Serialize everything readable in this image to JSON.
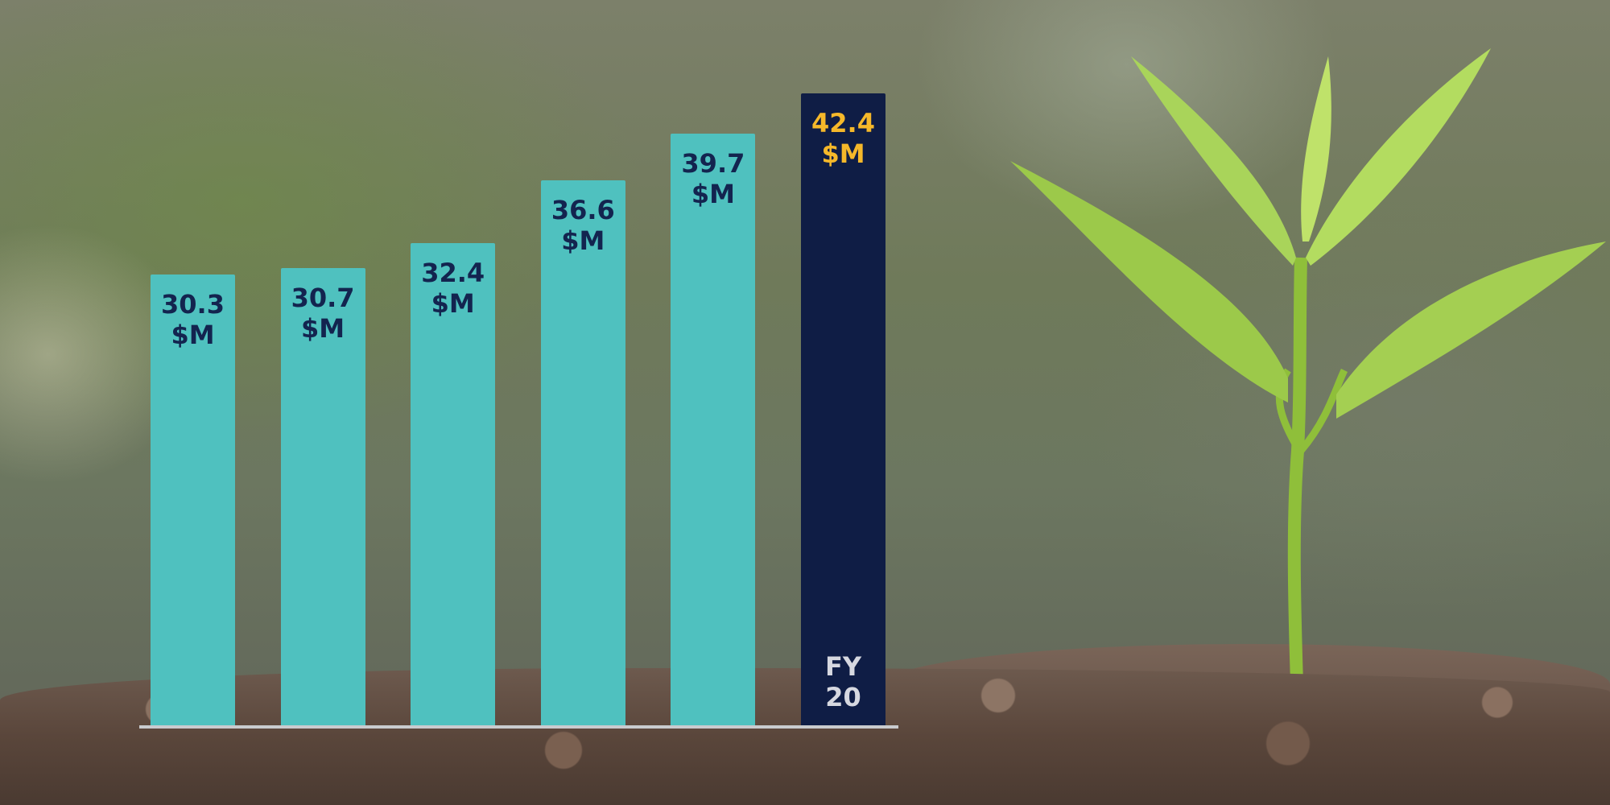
{
  "chart_data": {
    "type": "bar",
    "categories": [
      null,
      null,
      null,
      null,
      null,
      "FY 20"
    ],
    "values": [
      30.3,
      30.7,
      32.4,
      36.6,
      39.7,
      42.4
    ],
    "value_labels": [
      "30.3 $M",
      "30.7 $M",
      "32.4 $M",
      "36.6 $M",
      "39.7 $M",
      "42.4 $M"
    ],
    "colors": [
      "#4fc1bf",
      "#4fc1bf",
      "#4fc1bf",
      "#4fc1bf",
      "#4fc1bf",
      "#0f1d45"
    ],
    "label_colors": [
      "#13244f",
      "#13244f",
      "#13244f",
      "#13244f",
      "#13244f",
      "#f5b82a"
    ]
  }
}
